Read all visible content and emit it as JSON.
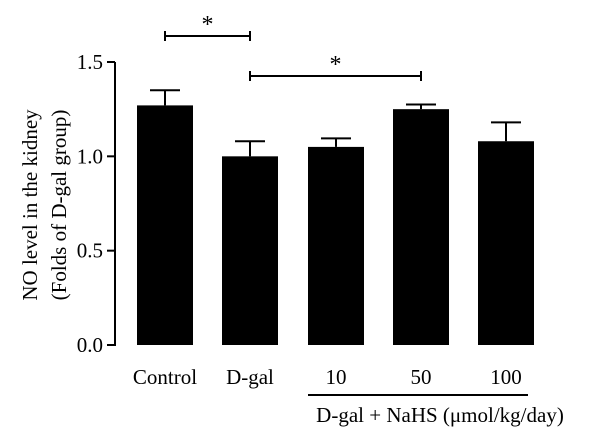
{
  "chart_data": {
    "type": "bar",
    "ylabel_line1": "NO level in the kidney",
    "ylabel_line2": "(Folds of D-gal group)",
    "ylim": [
      0,
      1.5
    ],
    "yticks": [
      "0.0",
      "0.5",
      "1.0",
      "1.5"
    ],
    "categories": [
      "Control",
      "D-gal",
      "10",
      "50",
      "100"
    ],
    "values": [
      1.27,
      1.0,
      1.05,
      1.25,
      1.08
    ],
    "errors": [
      0.08,
      0.08,
      0.045,
      0.025,
      0.1
    ],
    "bar_color": "#000000",
    "group_label": "D-gal + NaHS (μmol/kg/day)",
    "significance": [
      {
        "from": 0,
        "to": 1,
        "label": "*"
      },
      {
        "from": 1,
        "to": 3,
        "label": "*"
      }
    ]
  }
}
